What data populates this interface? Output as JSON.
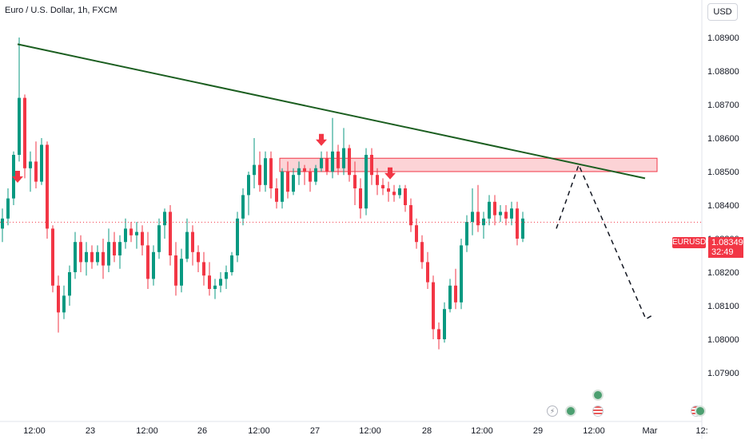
{
  "header": {
    "title": "Euro / U.S. Dollar, 1h, FXCM",
    "currency_button": "USD"
  },
  "price_badge": {
    "symbol": "EURUSD",
    "price": "1.08349",
    "countdown": "32:49"
  },
  "events": [
    {
      "type": "bolt-icon",
      "glyph": "⚡"
    },
    {
      "type": "green-icon"
    },
    {
      "type": "flag-icon"
    },
    {
      "type": "green-icon"
    },
    {
      "type": "flag-icon"
    },
    {
      "type": "green-icon"
    }
  ],
  "chart_data": {
    "type": "candlestick",
    "title": "Euro / U.S. Dollar, 1h, FXCM",
    "y_axis": {
      "range": [
        1.0787,
        1.0897
      ],
      "position": "right",
      "ticks": [
        "1.08900",
        "1.08800",
        "1.08700",
        "1.08600",
        "1.08500",
        "1.08400",
        "1.08300",
        "1.08200",
        "1.08100",
        "1.08000",
        "1.07900"
      ]
    },
    "x_axis": {
      "ticks": [
        "12:00",
        "23",
        "12:00",
        "26",
        "12:00",
        "27",
        "12:00",
        "28",
        "12:00",
        "29",
        "12:00",
        "Mar",
        "12:"
      ]
    },
    "colors": {
      "up": "#089981",
      "down": "#f23645",
      "trendline": "#1b5e20",
      "zone": "#f23645"
    },
    "candles": [
      [
        1.0833,
        1.0839,
        1.0829,
        1.0836
      ],
      [
        1.0836,
        1.0845,
        1.0834,
        1.0842
      ],
      [
        1.0842,
        1.0856,
        1.084,
        1.0855
      ],
      [
        1.0855,
        1.089,
        1.0853,
        1.0872
      ],
      [
        1.0872,
        1.0873,
        1.0848,
        1.0851
      ],
      [
        1.0851,
        1.0856,
        1.0844,
        1.0853
      ],
      [
        1.0853,
        1.0859,
        1.0845,
        1.0847
      ],
      [
        1.0847,
        1.086,
        1.0846,
        1.0858
      ],
      [
        1.0858,
        1.0859,
        1.083,
        1.0833
      ],
      [
        1.0833,
        1.0834,
        1.0814,
        1.0816
      ],
      [
        1.0816,
        1.0819,
        1.0802,
        1.0808
      ],
      [
        1.0808,
        1.0816,
        1.0806,
        1.0813
      ],
      [
        1.0813,
        1.0822,
        1.081,
        1.082
      ],
      [
        1.082,
        1.0832,
        1.0818,
        1.0829
      ],
      [
        1.0829,
        1.0831,
        1.082,
        1.0823
      ],
      [
        1.0823,
        1.0829,
        1.0819,
        1.0826
      ],
      [
        1.0826,
        1.0828,
        1.0821,
        1.0823
      ],
      [
        1.0823,
        1.0828,
        1.0822,
        1.0826
      ],
      [
        1.0826,
        1.083,
        1.0818,
        1.0822
      ],
      [
        1.0822,
        1.0833,
        1.082,
        1.0829
      ],
      [
        1.0829,
        1.0832,
        1.0823,
        1.0825
      ],
      [
        1.0825,
        1.0831,
        1.0821,
        1.0829
      ],
      [
        1.0829,
        1.0836,
        1.0827,
        1.0833
      ],
      [
        1.0833,
        1.0835,
        1.0829,
        1.0831
      ],
      [
        1.0831,
        1.0835,
        1.0827,
        1.0832
      ],
      [
        1.0832,
        1.0834,
        1.0825,
        1.0828
      ],
      [
        1.0828,
        1.0832,
        1.0815,
        1.0818
      ],
      [
        1.0818,
        1.0828,
        1.0816,
        1.0826
      ],
      [
        1.0826,
        1.0836,
        1.0824,
        1.0834
      ],
      [
        1.0834,
        1.0839,
        1.083,
        1.0838
      ],
      [
        1.0838,
        1.084,
        1.0822,
        1.0825
      ],
      [
        1.0825,
        1.0829,
        1.0813,
        1.0816
      ],
      [
        1.0816,
        1.0827,
        1.0814,
        1.0824
      ],
      [
        1.0824,
        1.0836,
        1.0823,
        1.0832
      ],
      [
        1.0832,
        1.0834,
        1.0822,
        1.0826
      ],
      [
        1.0826,
        1.0828,
        1.082,
        1.0823
      ],
      [
        1.0823,
        1.0826,
        1.0816,
        1.0819
      ],
      [
        1.0819,
        1.0823,
        1.0813,
        1.0815
      ],
      [
        1.0815,
        1.0818,
        1.0812,
        1.0816
      ],
      [
        1.0816,
        1.082,
        1.0814,
        1.0818
      ],
      [
        1.0818,
        1.0822,
        1.0815,
        1.082
      ],
      [
        1.082,
        1.0826,
        1.0819,
        1.0825
      ],
      [
        1.0825,
        1.0838,
        1.0823,
        1.0836
      ],
      [
        1.0836,
        1.0845,
        1.0834,
        1.0843
      ],
      [
        1.0843,
        1.085,
        1.0837,
        1.0849
      ],
      [
        1.0849,
        1.086,
        1.0845,
        1.0852
      ],
      [
        1.0852,
        1.0856,
        1.0844,
        1.0846
      ],
      [
        1.0846,
        1.0856,
        1.0844,
        1.0854
      ],
      [
        1.0854,
        1.0856,
        1.0842,
        1.0845
      ],
      [
        1.0845,
        1.0848,
        1.0839,
        1.0841
      ],
      [
        1.0841,
        1.0851,
        1.0839,
        1.085
      ],
      [
        1.085,
        1.0853,
        1.0842,
        1.0844
      ],
      [
        1.0844,
        1.0851,
        1.0843,
        1.0849
      ],
      [
        1.0849,
        1.0853,
        1.0846,
        1.0851
      ],
      [
        1.0851,
        1.0852,
        1.0846,
        1.085
      ],
      [
        1.085,
        1.0851,
        1.0844,
        1.0847
      ],
      [
        1.0847,
        1.0852,
        1.0846,
        1.0851
      ],
      [
        1.0851,
        1.0856,
        1.085,
        1.0854
      ],
      [
        1.0854,
        1.0856,
        1.0849,
        1.085
      ],
      [
        1.085,
        1.0866,
        1.0848,
        1.0856
      ],
      [
        1.0856,
        1.0858,
        1.0849,
        1.0851
      ],
      [
        1.0851,
        1.0863,
        1.0849,
        1.0857
      ],
      [
        1.0857,
        1.0858,
        1.0847,
        1.0849
      ],
      [
        1.0849,
        1.0853,
        1.084,
        1.0845
      ],
      [
        1.0845,
        1.0848,
        1.0836,
        1.0839
      ],
      [
        1.0839,
        1.0857,
        1.0837,
        1.0855
      ],
      [
        1.0855,
        1.0857,
        1.0846,
        1.0849
      ],
      [
        1.0849,
        1.0851,
        1.0843,
        1.0846
      ],
      [
        1.0846,
        1.0848,
        1.0843,
        1.0845
      ],
      [
        1.0845,
        1.0847,
        1.0841,
        1.0844
      ],
      [
        1.0844,
        1.0846,
        1.0841,
        1.0843
      ],
      [
        1.0843,
        1.0846,
        1.0842,
        1.0845
      ],
      [
        1.0845,
        1.0846,
        1.0838,
        1.084
      ],
      [
        1.084,
        1.0842,
        1.0832,
        1.0834
      ],
      [
        1.0834,
        1.0836,
        1.0827,
        1.0829
      ],
      [
        1.0829,
        1.0831,
        1.0821,
        1.0823
      ],
      [
        1.0823,
        1.0826,
        1.0815,
        1.0817
      ],
      [
        1.0817,
        1.0819,
        1.08,
        1.0803
      ],
      [
        1.0803,
        1.0805,
        1.0797,
        1.08
      ],
      [
        1.08,
        1.0811,
        1.0799,
        1.0809
      ],
      [
        1.0809,
        1.0818,
        1.0808,
        1.0816
      ],
      [
        1.0816,
        1.0821,
        1.0809,
        1.0811
      ],
      [
        1.0811,
        1.083,
        1.0809,
        1.0828
      ],
      [
        1.0828,
        1.0837,
        1.0826,
        1.0835
      ],
      [
        1.0835,
        1.0845,
        1.0831,
        1.0838
      ],
      [
        1.0838,
        1.0846,
        1.0832,
        1.0834
      ],
      [
        1.0834,
        1.0838,
        1.083,
        1.0836
      ],
      [
        1.0836,
        1.0843,
        1.0834,
        1.0841
      ],
      [
        1.0841,
        1.0843,
        1.0834,
        1.0837
      ],
      [
        1.0837,
        1.084,
        1.0835,
        1.0838
      ],
      [
        1.0838,
        1.084,
        1.0834,
        1.0836
      ],
      [
        1.0836,
        1.0841,
        1.0834,
        1.0839
      ],
      [
        1.0839,
        1.0841,
        1.0828,
        1.083
      ],
      [
        1.083,
        1.0838,
        1.0829,
        1.0836
      ]
    ],
    "trendline": {
      "from": [
        1,
        1.0888
      ],
      "to": [
        129,
        1.0848
      ]
    },
    "resistance_zone": {
      "from_index": 50,
      "to_index": 117,
      "top": 1.08528,
      "bottom": 1.08512
    },
    "projection": [
      [
        108,
        1.0833
      ],
      [
        112,
        1.0852
      ],
      [
        124,
        1.0806
      ],
      [
        125,
        1.0807
      ]
    ],
    "markers": [
      1,
      58,
      70
    ]
  }
}
